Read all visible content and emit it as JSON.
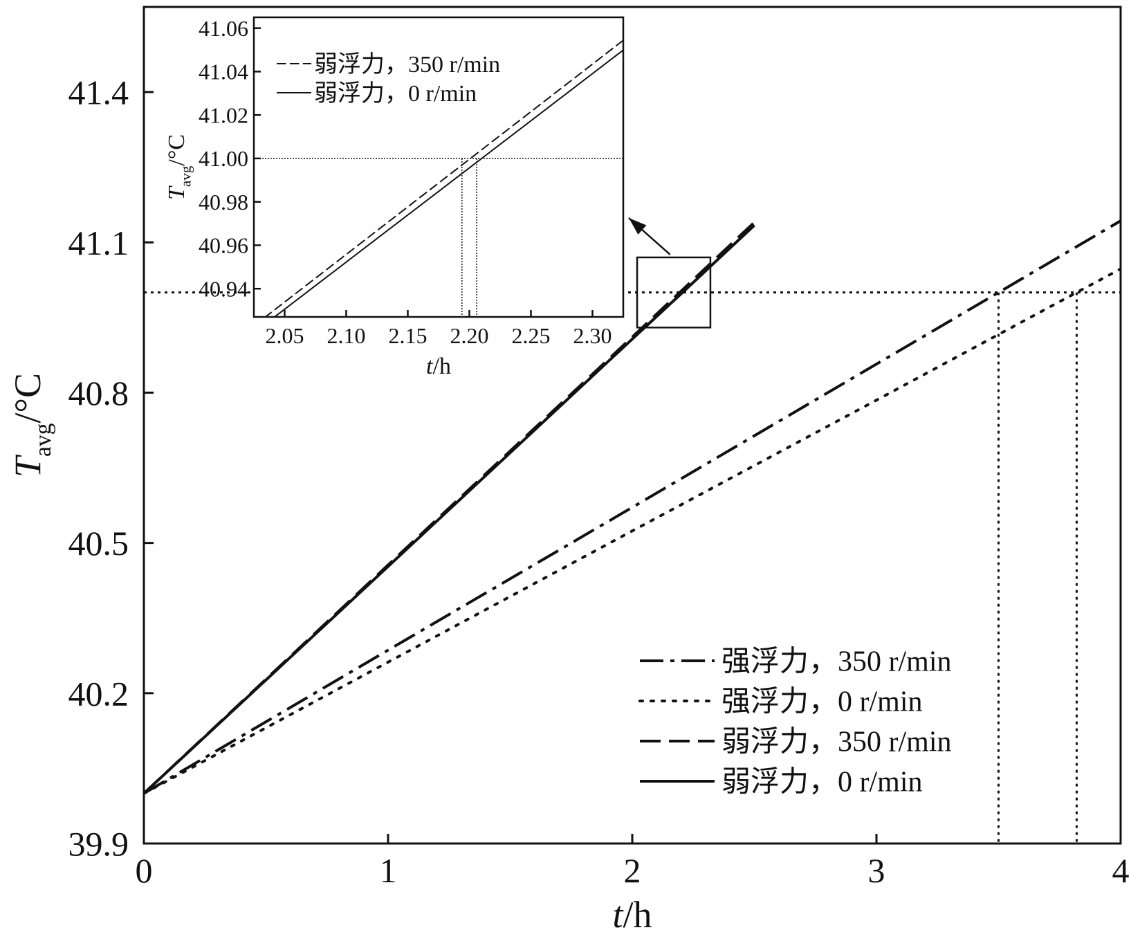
{
  "chart_data": [
    {
      "id": "main",
      "type": "line",
      "xlabel_italic": "t",
      "xlabel_unit": "/h",
      "ylabel_main": "T",
      "ylabel_sub": "avg",
      "ylabel_unit": "/°C",
      "xlim": [
        0,
        4
      ],
      "ylim": [
        39.9,
        41.57
      ],
      "xticks": [
        0,
        1,
        2,
        3,
        4
      ],
      "xtick_labels": [
        "0",
        "1",
        "2",
        "3",
        "4"
      ],
      "yticks": [
        39.9,
        40.2,
        40.5,
        40.8,
        41.1,
        41.4
      ],
      "ytick_labels": [
        "39.9",
        "40.2",
        "40.5",
        "40.8",
        "41.1",
        "41.4"
      ],
      "grid": false,
      "legend_position": "bottom-right",
      "reference_line_y": 41.0,
      "reference_lines_x": [
        3.5,
        3.82
      ],
      "zoom_box": {
        "x": [
          2.02,
          2.32
        ],
        "y": [
          40.93,
          41.07
        ]
      },
      "series": [
        {
          "name": "强浮力，350 r/min",
          "style": "dashdot",
          "x": [
            0,
            1,
            2,
            3,
            3.5,
            4
          ],
          "y": [
            40.0,
            40.286,
            40.571,
            40.857,
            41.0,
            41.143
          ]
        },
        {
          "name": "强浮力，0 r/min",
          "style": "dotted",
          "x": [
            0,
            1,
            2,
            3,
            3.82,
            4
          ],
          "y": [
            40.0,
            40.262,
            40.524,
            40.785,
            41.0,
            41.047
          ]
        },
        {
          "name": "弱浮力，350 r/min",
          "style": "dashed",
          "x": [
            0,
            1,
            2,
            2.194,
            2.5
          ],
          "y": [
            40.0,
            40.456,
            40.911,
            41.0,
            41.14
          ]
        },
        {
          "name": "弱浮力，0 r/min",
          "style": "solid",
          "x": [
            0,
            1,
            2,
            2.206,
            2.5
          ],
          "y": [
            40.0,
            40.453,
            40.907,
            41.0,
            41.134
          ]
        }
      ]
    },
    {
      "id": "inset",
      "type": "line",
      "xlabel_italic": "t",
      "xlabel_unit": "/h",
      "ylabel_main": "T",
      "ylabel_sub": "avg",
      "ylabel_unit": "/°C",
      "xlim": [
        2.025,
        2.325
      ],
      "ylim": [
        40.927,
        41.065
      ],
      "xticks": [
        2.05,
        2.1,
        2.15,
        2.2,
        2.25,
        2.3
      ],
      "xtick_labels": [
        "2.05",
        "2.10",
        "2.15",
        "2.20",
        "2.25",
        "2.30"
      ],
      "yticks": [
        40.94,
        40.96,
        40.98,
        41.0,
        41.02,
        41.04,
        41.06
      ],
      "ytick_labels": [
        "40.94",
        "40.96",
        "40.98",
        "41.00",
        "41.02",
        "41.04",
        "41.06"
      ],
      "grid": false,
      "legend_position": "top-left",
      "reference_line_y": 41.0,
      "reference_lines_x": [
        2.194,
        2.206
      ],
      "series": [
        {
          "name": "弱浮力，350 r/min",
          "style": "dashed",
          "x": [
            2.025,
            2.325
          ],
          "y": [
            40.9229,
            41.0544
          ]
        },
        {
          "name": "弱浮力，0 r/min",
          "style": "solid",
          "x": [
            2.025,
            2.325
          ],
          "y": [
            40.9197,
            41.0499
          ]
        }
      ]
    }
  ]
}
